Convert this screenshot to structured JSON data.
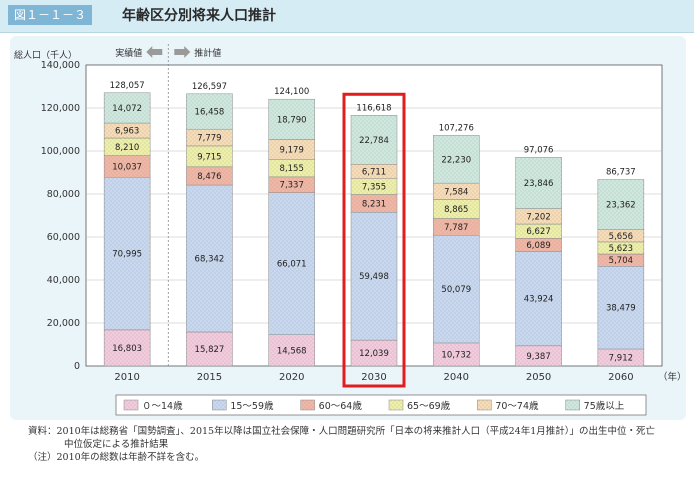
{
  "header": {
    "figure_label": "図１－１－３",
    "title": "年齢区分別将来人口推計"
  },
  "chart_data": {
    "type": "bar",
    "stacked": true,
    "ylabel": "総人口（千人）",
    "xlabel_unit": "（年）",
    "ylim": [
      0,
      140000
    ],
    "yticks": [
      "0",
      "20,000",
      "40,000",
      "60,000",
      "80,000",
      "100,000",
      "120,000",
      "140,000"
    ],
    "grid": true,
    "actual_label": "実績値",
    "estimate_label": "推計値",
    "highlighted_category": "2030",
    "categories": [
      "2010",
      "2015",
      "2020",
      "2030",
      "2040",
      "2050",
      "2060"
    ],
    "totals": [
      "128,057",
      "126,597",
      "124,100",
      "116,618",
      "107,276",
      "97,076",
      "86,737"
    ],
    "series": [
      {
        "name": "０～14歳",
        "color": "#f3cbdc",
        "values": [
          16803,
          15827,
          14568,
          12039,
          10732,
          9387,
          7912
        ],
        "labels": [
          "16,803",
          "15,827",
          "14,568",
          "12,039",
          "10,732",
          "9,387",
          "7,912"
        ]
      },
      {
        "name": "15～59歳",
        "color": "#c8d8ef",
        "values": [
          70995,
          68342,
          66071,
          59498,
          50079,
          43924,
          38479
        ],
        "labels": [
          "70,995",
          "68,342",
          "66,071",
          "59,498",
          "50,079",
          "43,924",
          "38,479"
        ]
      },
      {
        "name": "60～64歳",
        "color": "#f2b6a4",
        "values": [
          10037,
          8476,
          7337,
          8231,
          7787,
          6089,
          5704
        ],
        "labels": [
          "10,037",
          "8,476",
          "7,337",
          "8,231",
          "7,787",
          "6,089",
          "5,704"
        ]
      },
      {
        "name": "65～69歳",
        "color": "#eef0a8",
        "values": [
          8210,
          9715,
          8155,
          7355,
          8865,
          6627,
          5623
        ],
        "labels": [
          "8,210",
          "9,715",
          "8,155",
          "7,355",
          "8,865",
          "6,627",
          "5,623"
        ]
      },
      {
        "name": "70～74歳",
        "color": "#f7dcb6",
        "values": [
          6963,
          7779,
          9179,
          6711,
          7584,
          7202,
          5656
        ],
        "labels": [
          "6,963",
          "7,779",
          "9,179",
          "6,711",
          "7,584",
          "7,202",
          "5,656"
        ]
      },
      {
        "name": "75歳以上",
        "color": "#cfe8de",
        "values": [
          14072,
          16458,
          18790,
          22784,
          22230,
          23846,
          23362
        ],
        "labels": [
          "14,072",
          "16,458",
          "18,790",
          "22,784",
          "22,230",
          "23,846",
          "23,362"
        ]
      }
    ]
  },
  "footnotes": {
    "line1": "資料：2010年は総務省「国勢調査」、2015年以降は国立社会保障・人口問題研究所「日本の将来推計人口（平成24年1月推計）」の出生中位・死亡",
    "line2": "中位仮定による推計結果",
    "line3": "（注）2010年の総数は年齢不詳を含む。"
  }
}
